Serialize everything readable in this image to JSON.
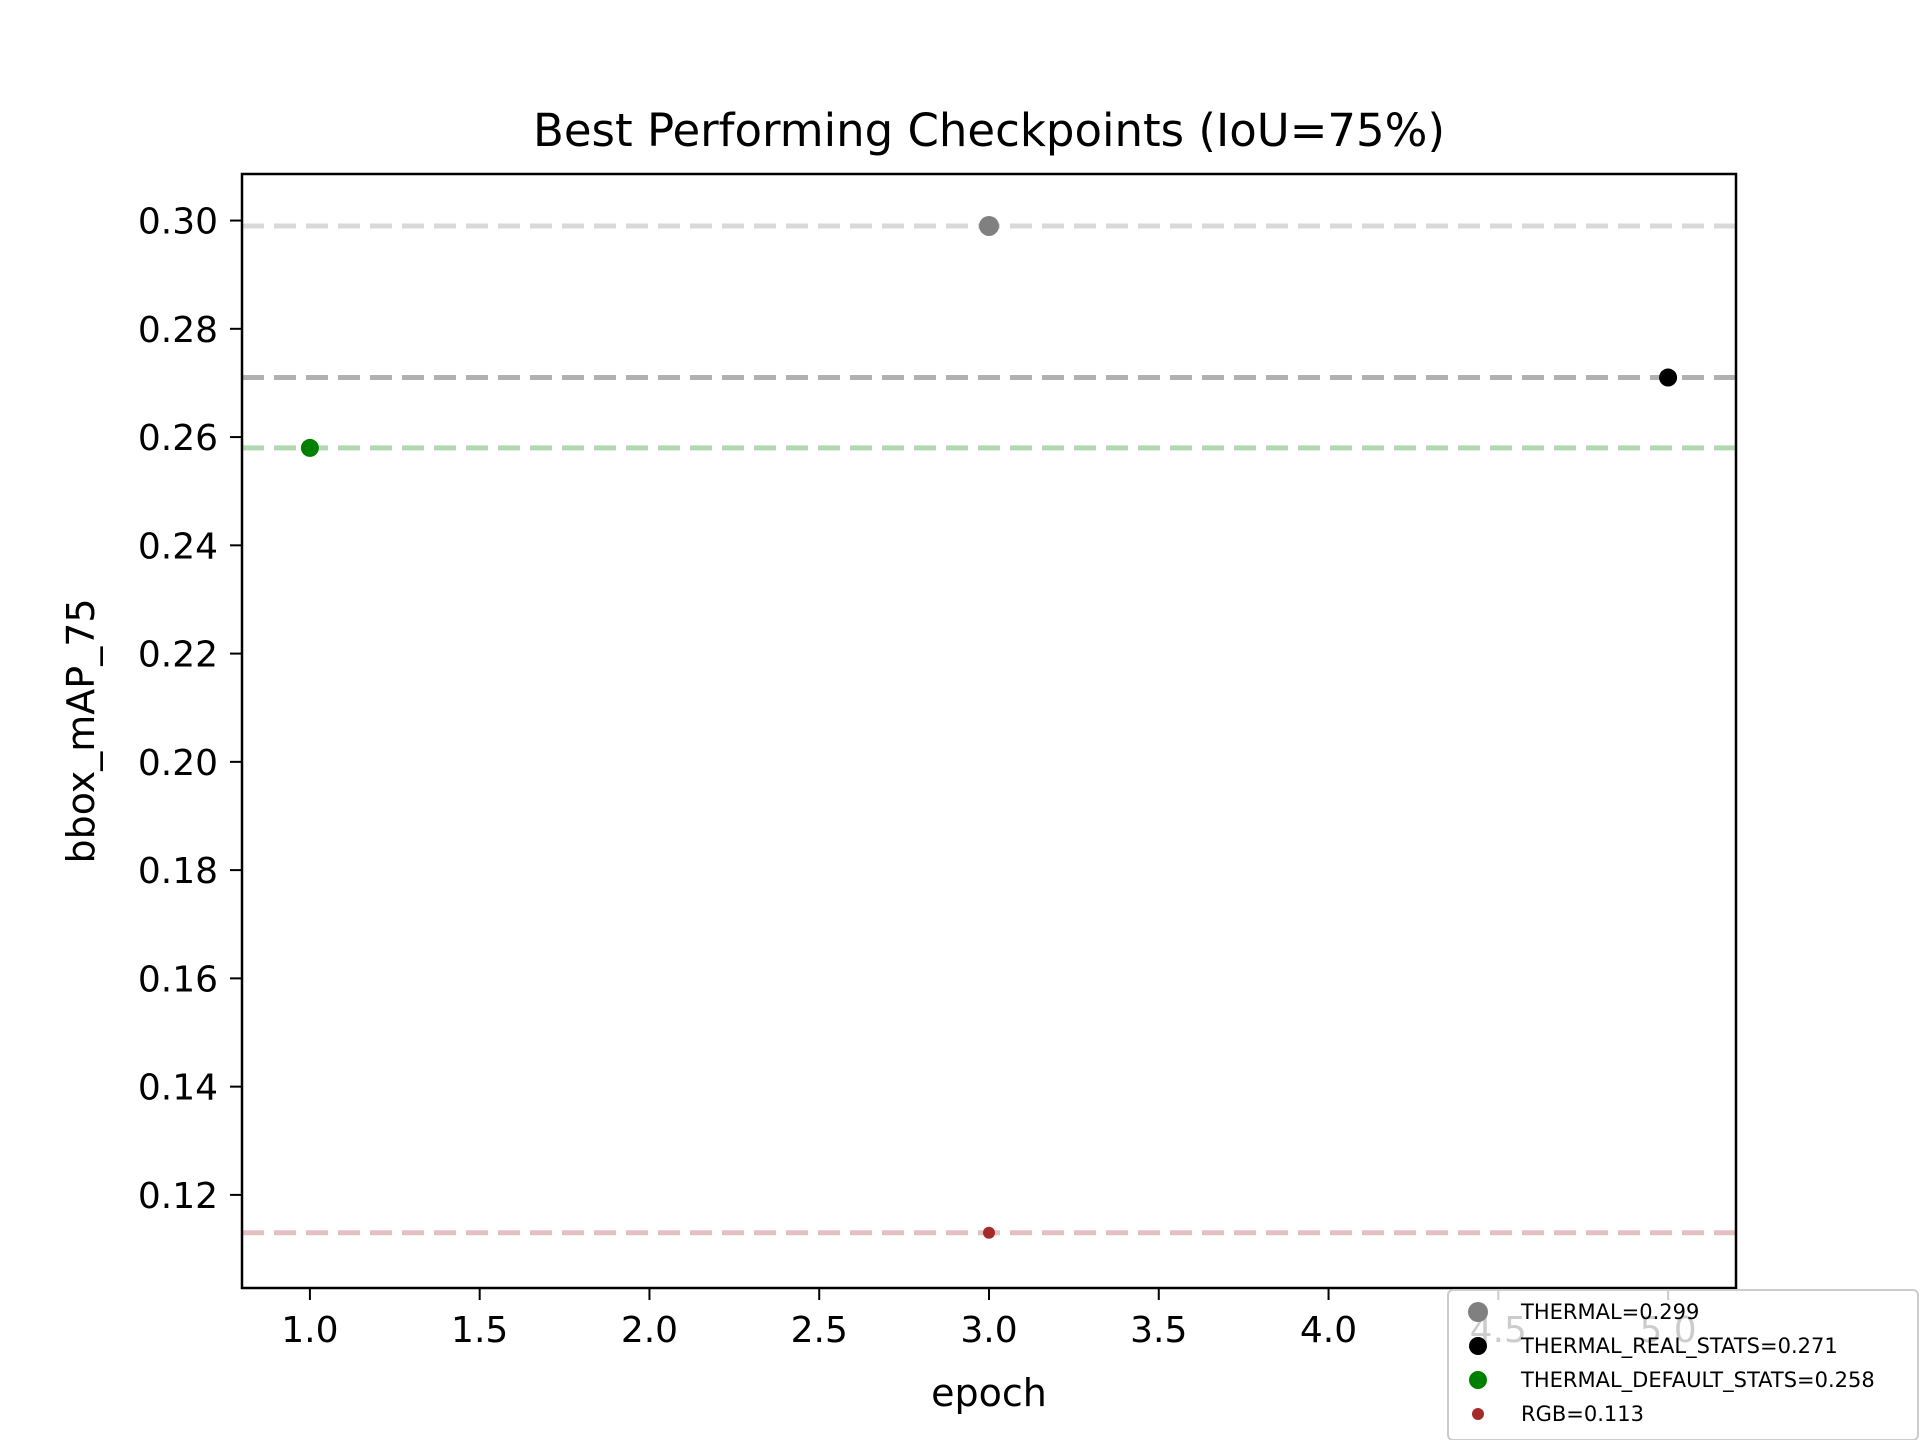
{
  "chart_data": {
    "type": "scatter",
    "title": "Best Performing Checkpoints (IoU=75%)",
    "xlabel": "epoch",
    "ylabel": "bbox_mAP_75",
    "xlim": [
      0.8,
      5.2
    ],
    "ylim": [
      0.1028,
      0.3086
    ],
    "x_ticks": [
      "1.0",
      "1.5",
      "2.0",
      "2.5",
      "3.0",
      "3.5",
      "4.0",
      "4.5",
      "5.0"
    ],
    "x_tick_values": [
      1.0,
      1.5,
      2.0,
      2.5,
      3.0,
      3.5,
      4.0,
      4.5,
      5.0
    ],
    "y_ticks": [
      "0.12",
      "0.14",
      "0.16",
      "0.18",
      "0.20",
      "0.22",
      "0.24",
      "0.26",
      "0.28",
      "0.30"
    ],
    "y_tick_values": [
      0.12,
      0.14,
      0.16,
      0.18,
      0.2,
      0.22,
      0.24,
      0.26,
      0.28,
      0.3
    ],
    "grid": false,
    "legend_placement": "bottom-right",
    "series": [
      {
        "name": "THERMAL=0.299",
        "x": 3,
        "y": 0.299,
        "color": "#808080",
        "line_color": "#d9d9d9",
        "marker": "large"
      },
      {
        "name": "THERMAL_REAL_STATS=0.271",
        "x": 5,
        "y": 0.271,
        "color": "#000000",
        "line_color": "#b0b0b0",
        "marker": "medium"
      },
      {
        "name": "THERMAL_DEFAULT_STATS=0.258",
        "x": 1,
        "y": 0.258,
        "color": "#008000",
        "line_color": "#b2d8b2",
        "marker": "medium"
      },
      {
        "name": "RGB=0.113",
        "x": 3,
        "y": 0.113,
        "color": "#a52a2a",
        "line_color": "#e4c0c0",
        "marker": "small"
      }
    ]
  }
}
